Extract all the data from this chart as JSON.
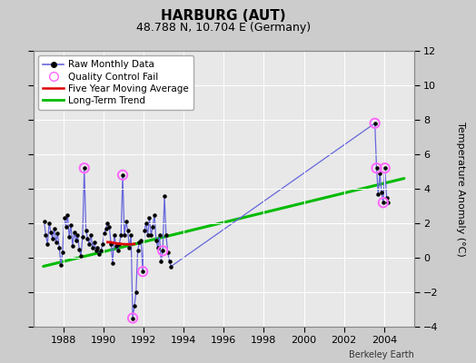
{
  "title": "HARBURG (AUT)",
  "subtitle": "48.788 N, 10.704 E (Germany)",
  "ylabel": "Temperature Anomaly (°C)",
  "credit": "Berkeley Earth",
  "xlim": [
    1986.5,
    2005.5
  ],
  "ylim": [
    -4,
    12
  ],
  "yticks": [
    -4,
    -2,
    0,
    2,
    4,
    6,
    8,
    10,
    12
  ],
  "xticks": [
    1988,
    1990,
    1992,
    1994,
    1996,
    1998,
    2000,
    2002,
    2004
  ],
  "bg_color": "#cccccc",
  "plot_bg_color": "#e8e8e8",
  "raw_x": [
    1987.042,
    1987.125,
    1987.208,
    1987.292,
    1987.375,
    1987.458,
    1987.542,
    1987.625,
    1987.708,
    1987.792,
    1987.875,
    1987.958,
    1988.042,
    1988.125,
    1988.208,
    1988.292,
    1988.375,
    1988.458,
    1988.542,
    1988.625,
    1988.708,
    1988.792,
    1988.875,
    1988.958,
    1989.042,
    1989.125,
    1989.208,
    1989.292,
    1989.375,
    1989.458,
    1989.542,
    1989.625,
    1989.708,
    1989.792,
    1989.875,
    1989.958,
    1990.042,
    1990.125,
    1990.208,
    1990.292,
    1990.375,
    1990.458,
    1990.542,
    1990.625,
    1990.708,
    1990.792,
    1990.875,
    1990.958,
    1991.042,
    1991.125,
    1991.208,
    1991.292,
    1991.375,
    1991.458,
    1991.542,
    1991.625,
    1991.708,
    1991.792,
    1991.875,
    1991.958,
    1992.042,
    1992.125,
    1992.208,
    1992.292,
    1992.375,
    1992.458,
    1992.542,
    1992.625,
    1992.708,
    1992.792,
    1992.875,
    1992.958,
    1993.042,
    1993.125,
    1993.208,
    1993.292,
    1993.375,
    2003.542,
    2003.625,
    2003.708,
    2003.792,
    2003.875,
    2003.958,
    2004.042,
    2004.125,
    2004.208
  ],
  "raw_y": [
    2.1,
    1.3,
    0.8,
    2.0,
    1.5,
    1.1,
    1.7,
    0.9,
    1.4,
    0.6,
    -0.4,
    0.3,
    2.3,
    1.8,
    2.5,
    1.2,
    1.9,
    0.7,
    1.5,
    1.0,
    1.3,
    0.5,
    0.1,
    1.2,
    5.2,
    1.6,
    1.1,
    0.8,
    1.3,
    0.6,
    0.9,
    0.4,
    0.6,
    0.2,
    0.4,
    0.8,
    1.4,
    1.7,
    2.0,
    1.8,
    0.8,
    -0.3,
    1.3,
    0.7,
    0.4,
    0.8,
    1.3,
    4.8,
    1.3,
    2.1,
    1.6,
    0.6,
    1.3,
    -3.5,
    -2.8,
    -2.0,
    0.4,
    0.9,
    1.0,
    -0.8,
    1.6,
    2.0,
    1.3,
    2.3,
    1.3,
    1.8,
    2.5,
    1.0,
    0.6,
    1.3,
    -0.2,
    0.4,
    3.6,
    1.3,
    0.3,
    -0.2,
    -0.5,
    7.8,
    5.2,
    3.7,
    4.9,
    3.8,
    3.2,
    5.2,
    3.5,
    3.2
  ],
  "qc_x": [
    1989.042,
    1990.958,
    1991.458,
    1991.958,
    1992.958,
    2003.542,
    2003.625,
    2003.958,
    2004.042
  ],
  "qc_y": [
    5.2,
    4.8,
    -3.5,
    -0.8,
    0.4,
    7.8,
    5.2,
    3.2,
    5.2
  ],
  "mov_avg_x": [
    1990.208,
    1990.375,
    1990.542,
    1990.708,
    1990.875,
    1991.042,
    1991.208,
    1991.375,
    1991.542
  ],
  "mov_avg_y": [
    0.9,
    0.9,
    0.85,
    0.82,
    0.8,
    0.78,
    0.78,
    0.78,
    0.8
  ],
  "trend_x": [
    1987.0,
    2005.0
  ],
  "trend_y": [
    -0.5,
    4.6
  ],
  "line_color": "#6666dd",
  "dot_color": "#000000",
  "qc_color": "#ff66ff",
  "mov_avg_color": "#dd0000",
  "trend_color": "#00bb00"
}
